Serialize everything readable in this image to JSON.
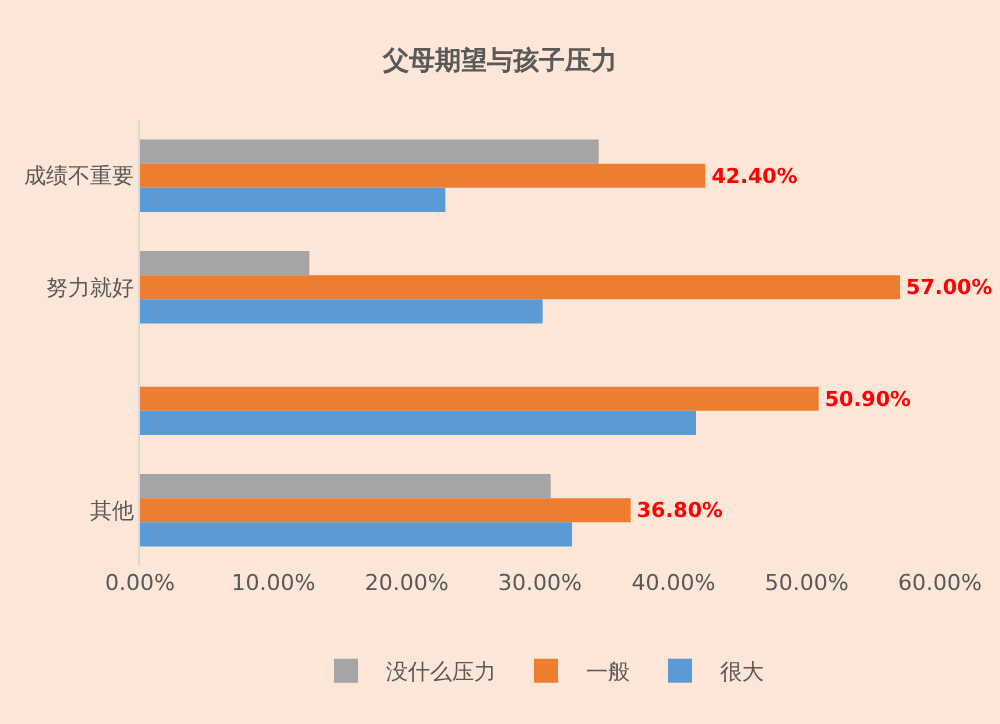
{
  "chart_data": {
    "type": "bar",
    "orientation": "horizontal",
    "title": "父母期望与孩子压力",
    "categories": [
      "成绩不重要",
      "努力就好",
      null,
      "其他"
    ],
    "series": [
      {
        "name": "没什么压力",
        "color": "#a5a5a5",
        "values": [
          34.4,
          12.7,
          null,
          30.8
        ]
      },
      {
        "name": "一般",
        "color": "#ed7d31",
        "values": [
          42.4,
          57.0,
          50.9,
          36.8
        ],
        "value_labels": [
          "42.40%",
          "57.00%",
          "50.90%",
          "36.80%"
        ]
      },
      {
        "name": "很大",
        "color": "#5b9bd5",
        "values": [
          22.9,
          30.2,
          41.7,
          32.4
        ]
      }
    ],
    "xlim": [
      0,
      60
    ],
    "xticks": [
      {
        "value": 0,
        "label": "0.00%"
      },
      {
        "value": 10,
        "label": "10.00%"
      },
      {
        "value": 20,
        "label": "20.00%"
      },
      {
        "value": 30,
        "label": "30.00%"
      },
      {
        "value": 40,
        "label": "40.00%"
      },
      {
        "value": 50,
        "label": "50.00%"
      },
      {
        "value": 60,
        "label": "60.00%"
      }
    ],
    "grid": false,
    "legend": "bottom"
  }
}
